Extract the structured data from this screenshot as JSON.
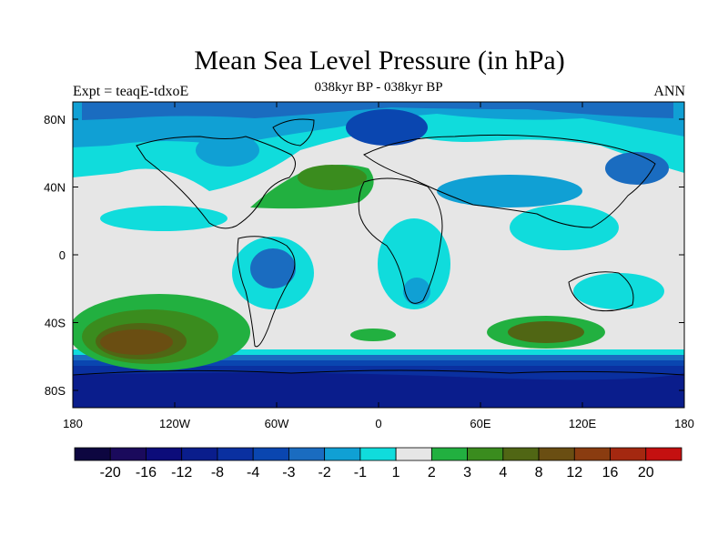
{
  "title": "Mean Sea Level Pressure (in hPa)",
  "subtitle": "038kyr BP - 038kyr BP",
  "left_label": "Expt = teaqE-tdxoE",
  "right_label": "ANN",
  "x_ticks": [
    "180",
    "120W",
    "60W",
    "0",
    "60E",
    "120E",
    "180"
  ],
  "y_ticks": [
    "80N",
    "40N",
    "0",
    "40S",
    "80S"
  ],
  "colorbar": {
    "colors": [
      "#1a0a5c",
      "#0c0c7a",
      "#0a1d8c",
      "#0a30a0",
      "#0a46b0",
      "#1a6cc0",
      "#10a0d4",
      "#10dcdc",
      "#e6e6e6",
      "#22b040",
      "#3a8c1e",
      "#506614",
      "#6a4e12",
      "#8a3c10",
      "#a42810",
      "#c41010"
    ],
    "labels": [
      "-20",
      "-16",
      "-12",
      "-8",
      "-4",
      "-3",
      "-2",
      "-1",
      "1",
      "2",
      "3",
      "4",
      "8",
      "12",
      "16",
      "20"
    ]
  }
}
